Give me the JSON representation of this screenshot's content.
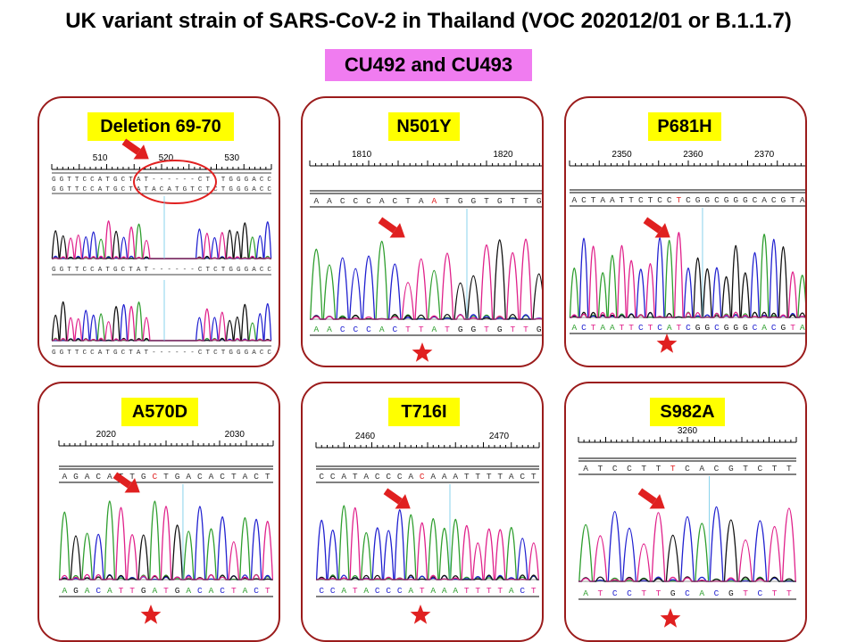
{
  "title": "UK variant strain of SARS-CoV-2 in Thailand (VOC 202012/01 or B.1.1.7)",
  "subtitle": "CU492 and CU493",
  "colors": {
    "frame": "#9b1c1c",
    "label_bg": "#ffff00",
    "subtitle_bg": "#f07cf0",
    "arrow": "#e02020",
    "star": "#e02020",
    "A": "#2e9e2e",
    "C": "#2020d0",
    "G": "#111111",
    "T": "#e0208a"
  },
  "panels": [
    {
      "label": "Deletion 69-70",
      "ruler": [
        "510",
        "520",
        "530"
      ],
      "ref_seq_1": "GGTTCCATGCTAT------CT TGGGACC",
      "ref_seq_2": "GGTTCCATGCTATACATGTCTCTGGGACC",
      "read_seq_1": "GGTTCCATGCTAT------CTCTGGGACC",
      "read_seq_2": "GGTTCCATGCTAT------CTCTGGGACC",
      "icons": [
        "arrow-icon",
        "ellipse-highlight"
      ]
    },
    {
      "label": "N501Y",
      "ruler": [
        "1810",
        "1820"
      ],
      "ref_seq": "AACCCACTAATGGTGTTG",
      "read_seq": "AACCCACTTATGGTGTTG",
      "mutation_index": 9,
      "icons": [
        "arrow-icon",
        "star-icon"
      ]
    },
    {
      "label": "P681H",
      "ruler": [
        "2350",
        "2360",
        "2370"
      ],
      "ref_seq": "ACTAATTCTCCTCGGCGGGCACGTA",
      "read_seq": "ACTAATTCTCATCGGCGGGCACGTA",
      "mutation_index": 11,
      "icons": [
        "arrow-icon",
        "star-icon"
      ]
    },
    {
      "label": "A570D",
      "ruler": [
        "2020",
        "2030"
      ],
      "ref_seq": "AGACATTGCTGACACTACT",
      "read_seq": "AGACATTGATGACACTACT",
      "mutation_index": 8,
      "icons": [
        "arrow-icon",
        "star-icon"
      ]
    },
    {
      "label": "T716I",
      "ruler": [
        "2460",
        "2470"
      ],
      "ref_seq": "CCATACCCACAAATTTTACT",
      "read_seq": "CCATACCCATAAATTTTACT",
      "mutation_index": 9,
      "icons": [
        "arrow-icon",
        "star-icon"
      ]
    },
    {
      "label": "S982A",
      "ruler": [
        "3260"
      ],
      "ref_seq": "ATCCTTTCACGTCTT",
      "read_seq": "ATCCTTGCACGTCTT",
      "mutation_index": 6,
      "icons": [
        "arrow-icon",
        "star-icon"
      ]
    }
  ]
}
